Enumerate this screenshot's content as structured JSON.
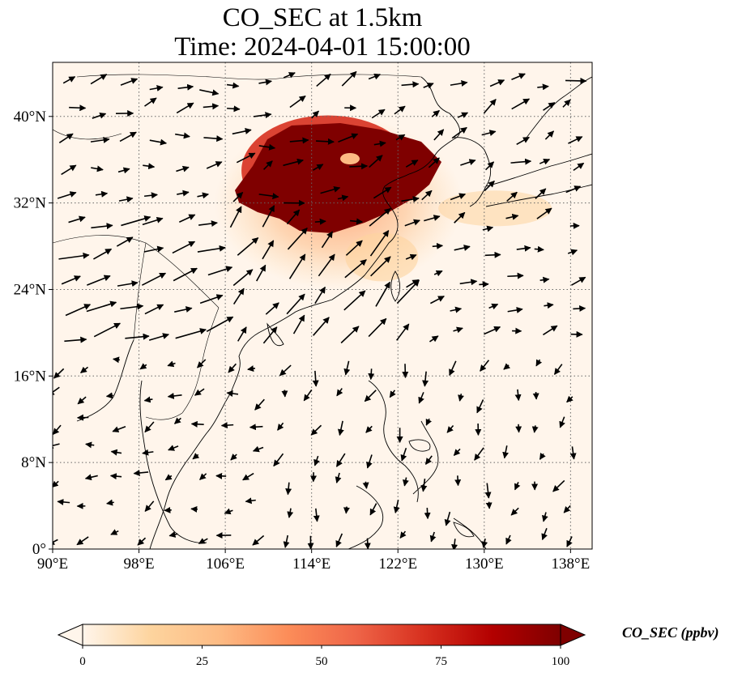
{
  "title": {
    "line1": "CO_SEC at 1.5km",
    "line2": "Time: 2024-04-01 15:00:00"
  },
  "map": {
    "extent": {
      "lon_min": 90,
      "lon_max": 140,
      "lat_min": 0,
      "lat_max": 45
    },
    "background_color": "#fff5eb",
    "gridlines": "dotted gray",
    "features": [
      "coastlines",
      "country borders",
      "wind vectors"
    ]
  },
  "axes": {
    "x_ticks": [
      {
        "lon": 90,
        "label": "90°E"
      },
      {
        "lon": 98,
        "label": "98°E"
      },
      {
        "lon": 106,
        "label": "106°E"
      },
      {
        "lon": 114,
        "label": "114°E"
      },
      {
        "lon": 122,
        "label": "122°E"
      },
      {
        "lon": 130,
        "label": "130°E"
      },
      {
        "lon": 138,
        "label": "138°E"
      }
    ],
    "y_ticks": [
      {
        "lat": 0,
        "label": "0°"
      },
      {
        "lat": 8,
        "label": "8°N"
      },
      {
        "lat": 16,
        "label": "16°N"
      },
      {
        "lat": 24,
        "label": "24°N"
      },
      {
        "lat": 32,
        "label": "32°N"
      },
      {
        "lat": 40,
        "label": "40°N"
      }
    ]
  },
  "colorbar": {
    "label": "CO_SEC (ppbv)",
    "cmap": "OrRd",
    "extend": "both",
    "range": [
      0,
      100
    ],
    "ticks": [
      "0",
      "25",
      "50",
      "75",
      "100"
    ],
    "colors": [
      "#fff5eb",
      "#fdd49e",
      "#fdbb84",
      "#fc8d59",
      "#ef6548",
      "#d7301f",
      "#b30000",
      "#7f0000"
    ]
  },
  "plume": {
    "description_values": "high CO over North China Plain",
    "core": {
      "lon_range": [
        107.5,
        122
      ],
      "lat_range": [
        30,
        39
      ],
      "value": 100
    },
    "halo": {
      "lon_range": [
        105,
        128
      ],
      "lat_range": [
        24,
        40
      ],
      "value": 40
    }
  }
}
